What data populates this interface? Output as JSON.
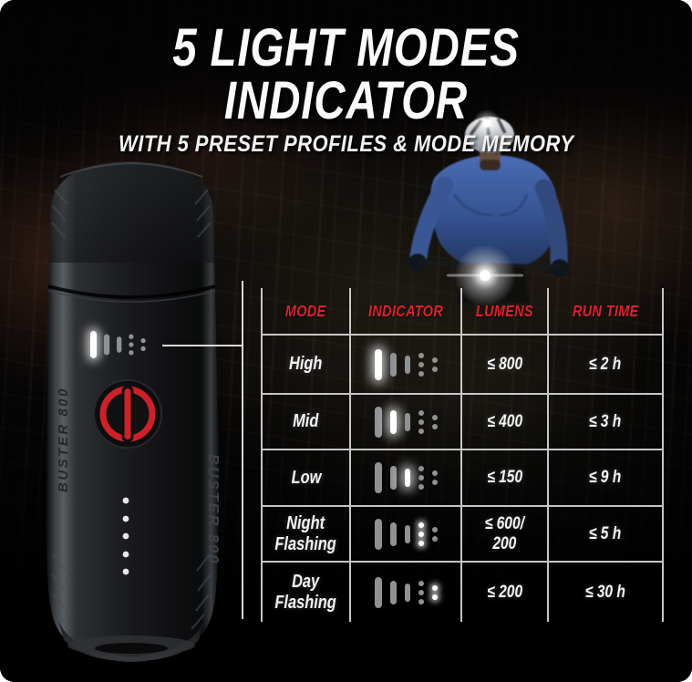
{
  "header": {
    "title": "5 LIGHT MODES INDICATOR",
    "subtitle": "WITH 5 PRESET PROFILES & MODE MEMORY"
  },
  "product": {
    "name": "BUSTER 800"
  },
  "table": {
    "columns": [
      "MODE",
      "INDICATOR",
      "LUMENS",
      "RUN TIME"
    ],
    "led_elements": [
      "led-bar-large",
      "led-bar-medium",
      "led-bar-small",
      "led-dots-triple",
      "led-dots-double"
    ],
    "rows": [
      {
        "mode": "High",
        "active_led": 0,
        "lumens": "≤ 800",
        "run_time": "≤ 2 h"
      },
      {
        "mode": "Mid",
        "active_led": 1,
        "lumens": "≤ 400",
        "run_time": "≤ 3 h"
      },
      {
        "mode": "Low",
        "active_led": 2,
        "lumens": "≤ 150",
        "run_time": "≤ 9 h"
      },
      {
        "mode": "Night\nFlashing",
        "active_led": 3,
        "lumens": "≤ 600/\n200",
        "run_time": "≤ 5 h"
      },
      {
        "mode": "Day\nFlashing",
        "active_led": 4,
        "lumens": "≤ 200",
        "run_time": "≤ 30 h"
      }
    ]
  },
  "colors": {
    "accent_red": "#e41e2a",
    "grid_line": "#e0e0e0",
    "led_active": "#ffffff",
    "led_dim": "#8f9294",
    "button_red": "#cf2027",
    "jacket_blue": "#3f61a6"
  }
}
